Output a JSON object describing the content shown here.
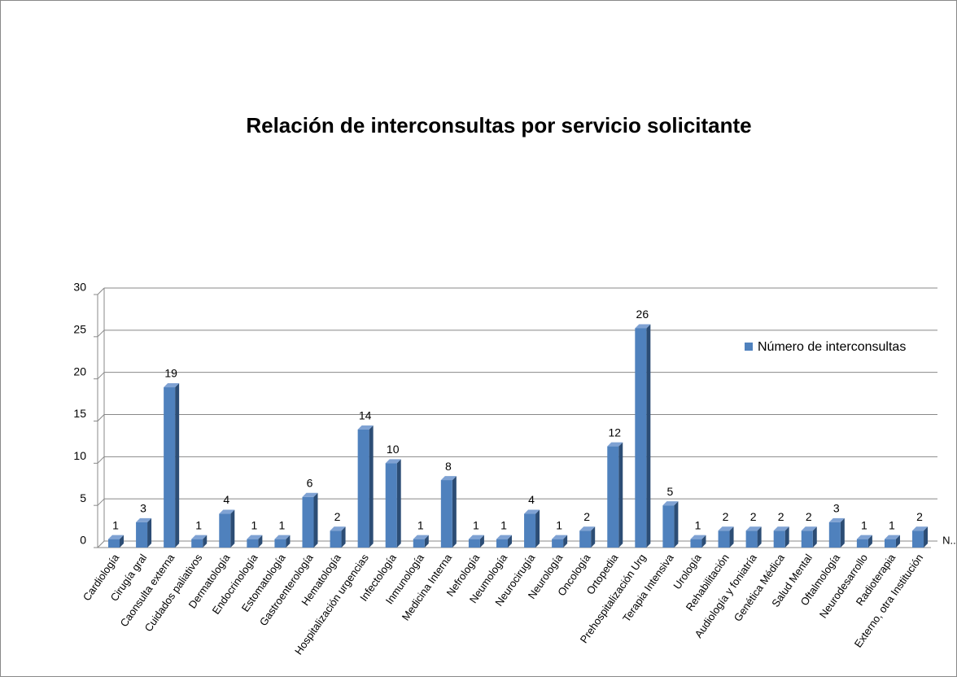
{
  "chart_data": {
    "type": "bar3d",
    "title": "Relación de interconsultas por servicio solicitante",
    "categories": [
      "Cardiología",
      "Cirugía gral",
      "Caonsulta externa",
      "Cuidados paliativos",
      "Dermatología",
      "Endocrinología",
      "Estomatología",
      "Gastroenterología",
      "Hematología",
      "Hospitalización urgencias",
      "Infectología",
      "Inmunología",
      "Medicina Interna",
      "Nefrología",
      "Neumología",
      "Neurocirugía",
      "Neurología",
      "Oncología",
      "Ortopedia",
      "Prehospitalización Urg",
      "Terapia Intensiva",
      "Urología",
      "Rehabilitación",
      "Audiología y foniatría",
      "Genética Médica",
      "Salud Mental",
      "Oftalmología",
      "Neurodesarrollo",
      "Radioterapia",
      "Externo, otra Institución",
      "N..."
    ],
    "series": [
      {
        "name": "Número de interconsultas",
        "color": "#4f81bd",
        "values": [
          1,
          3,
          19,
          1,
          4,
          1,
          1,
          6,
          2,
          14,
          10,
          1,
          8,
          1,
          1,
          4,
          1,
          2,
          12,
          26,
          5,
          1,
          2,
          2,
          2,
          2,
          3,
          1,
          1,
          2,
          null
        ]
      }
    ],
    "ylim": [
      0,
      30
    ],
    "yticks": [
      0,
      5,
      10,
      15,
      20,
      25,
      30
    ],
    "grid": true,
    "legend": "right"
  }
}
